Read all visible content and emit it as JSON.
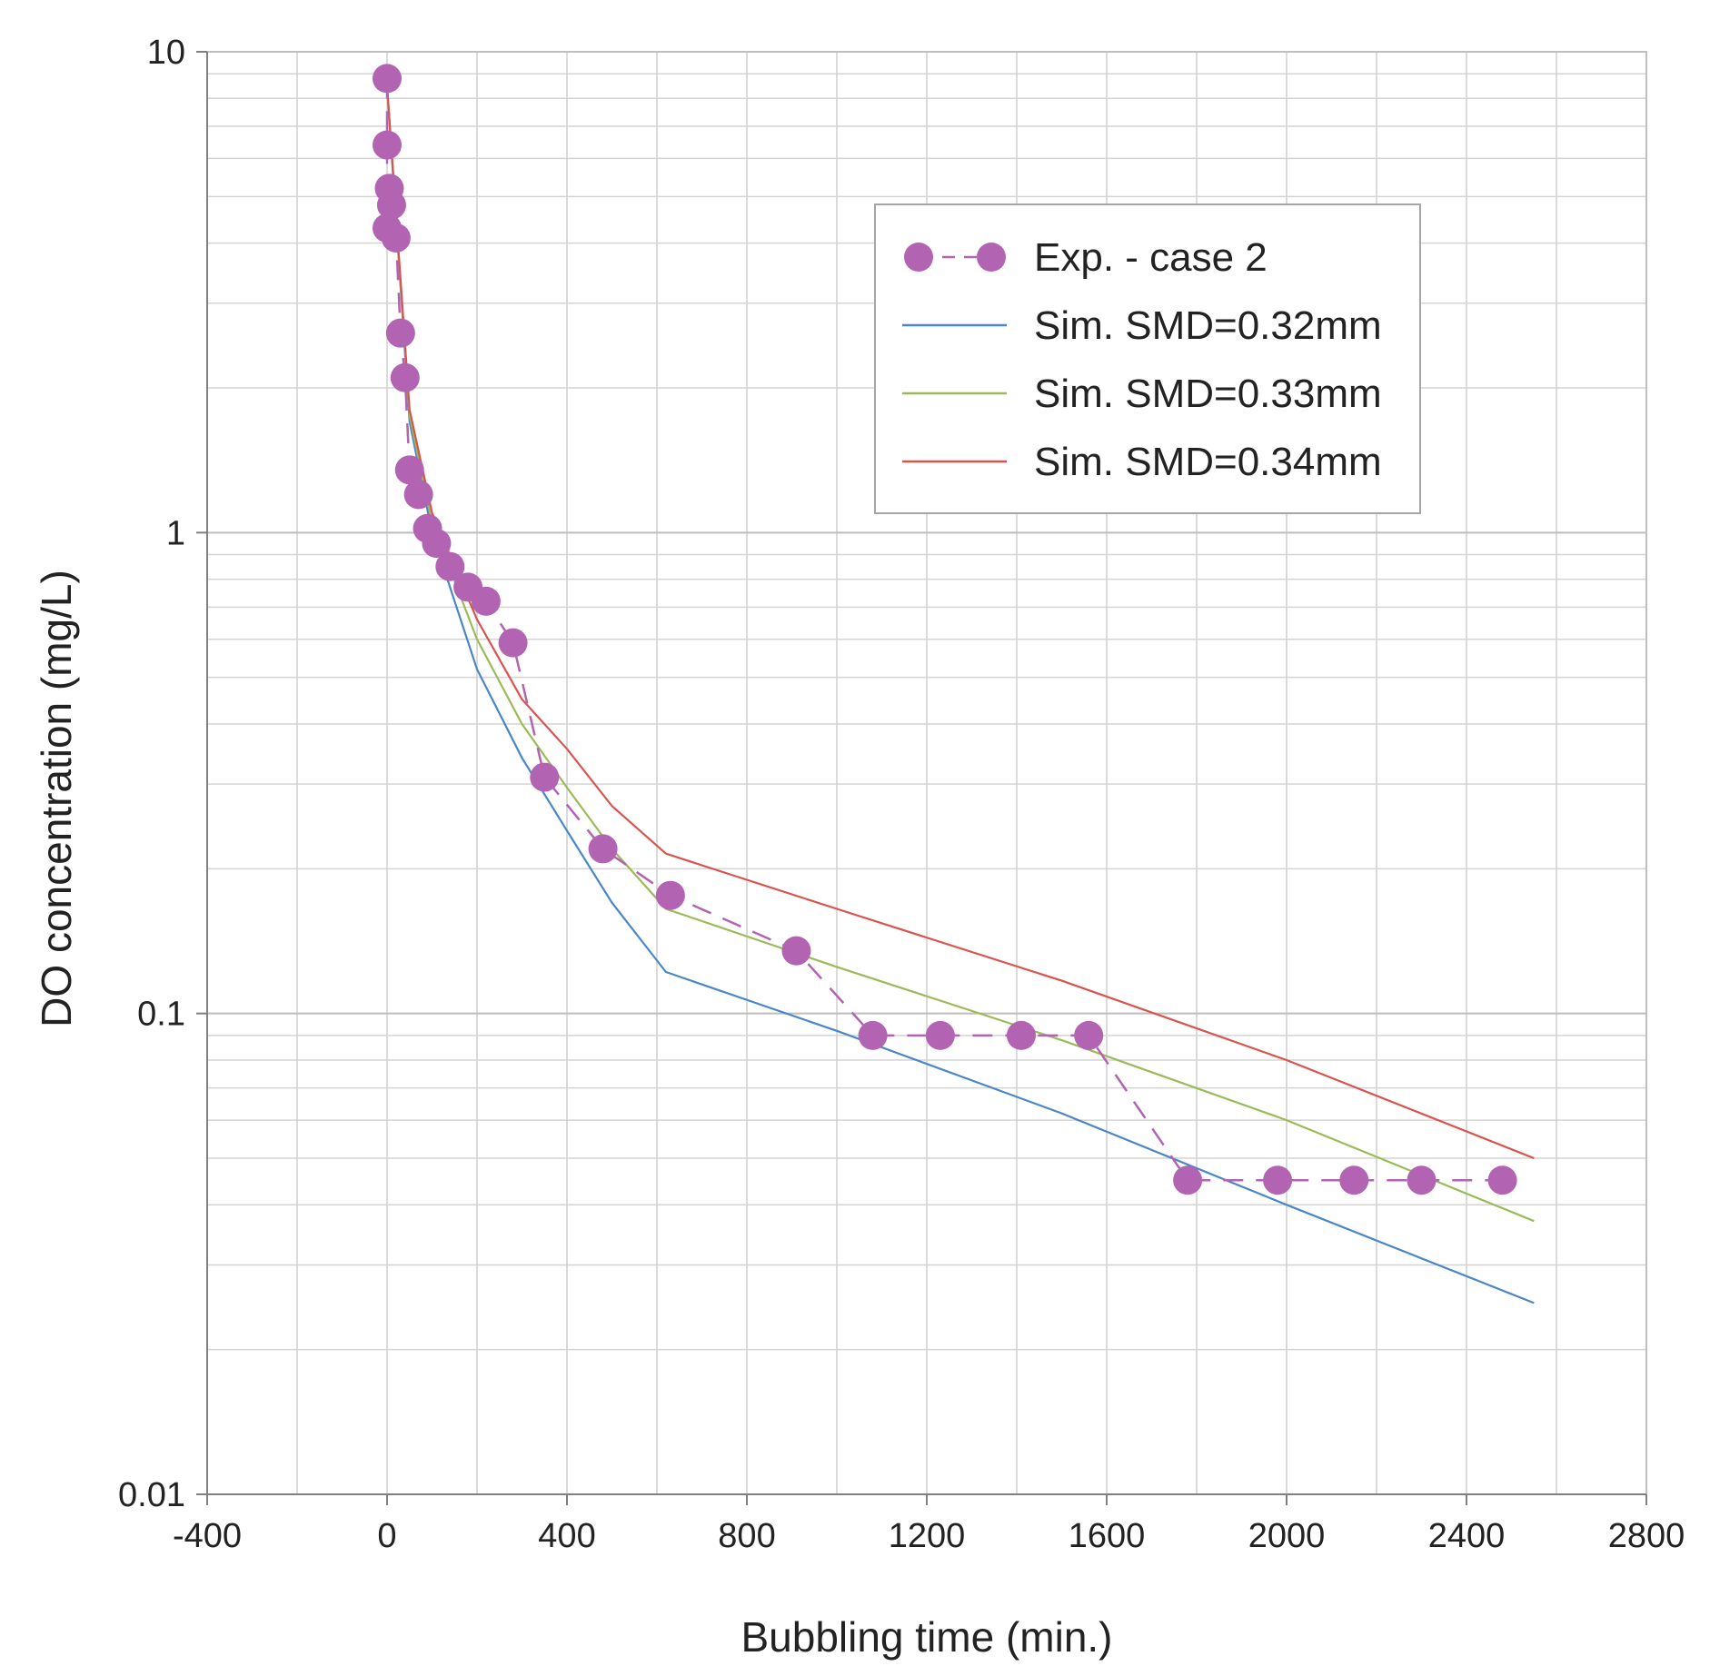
{
  "chart_data": {
    "type": "line",
    "title": "",
    "xlabel": "Bubbling time (min.)",
    "ylabel": "DO concentration (mg/L)",
    "xlim": [
      -400,
      2800
    ],
    "ylim": [
      0.01,
      10
    ],
    "yscale": "log",
    "grid": true,
    "legend_position": "top-right",
    "x_ticks": [
      -400,
      0,
      400,
      800,
      1200,
      1600,
      2000,
      2400,
      2800
    ],
    "x_tick_labels": [
      "-400",
      "0",
      "400",
      "800",
      "1200",
      "1600",
      "2000",
      "2400",
      "2800"
    ],
    "y_ticks": [
      0.01,
      0.1,
      1,
      10
    ],
    "y_tick_labels": [
      "0.01",
      "0.1",
      "1",
      "10"
    ],
    "series": [
      {
        "name": "Exp. - case 2",
        "style": "markers-dashed",
        "color": "#B264B2",
        "x": [
          0,
          0,
          0,
          5,
          10,
          20,
          30,
          40,
          50,
          70,
          90,
          110,
          140,
          180,
          220,
          280,
          350,
          480,
          630,
          910,
          1080,
          1230,
          1410,
          1560,
          1780,
          1980,
          2150,
          2300,
          2480
        ],
        "y": [
          8.8,
          6.4,
          4.3,
          5.2,
          4.8,
          4.1,
          2.6,
          2.1,
          1.35,
          1.2,
          1.02,
          0.95,
          0.85,
          0.77,
          0.72,
          0.59,
          0.31,
          0.22,
          0.176,
          0.135,
          0.09,
          0.09,
          0.09,
          0.09,
          0.045,
          0.045,
          0.045,
          0.045,
          0.045
        ]
      },
      {
        "name": "Sim. SMD=0.32mm",
        "style": "line",
        "color": "#4A86C8",
        "x": [
          0,
          50,
          100,
          200,
          300,
          400,
          500,
          620,
          1000,
          1500,
          2000,
          2550
        ],
        "y": [
          8.5,
          1.7,
          1.0,
          0.52,
          0.34,
          0.24,
          0.17,
          0.122,
          0.092,
          0.062,
          0.04,
          0.025
        ]
      },
      {
        "name": "Sim. SMD=0.33mm",
        "style": "line",
        "color": "#9BBB59",
        "x": [
          0,
          50,
          100,
          200,
          300,
          400,
          500,
          620,
          1000,
          1500,
          2000,
          2550
        ],
        "y": [
          8.5,
          1.75,
          1.05,
          0.6,
          0.4,
          0.295,
          0.22,
          0.165,
          0.125,
          0.088,
          0.06,
          0.037
        ]
      },
      {
        "name": "Sim. SMD=0.34mm",
        "style": "line",
        "color": "#D9534F",
        "x": [
          0,
          50,
          100,
          200,
          300,
          400,
          500,
          620,
          1000,
          1500,
          2000,
          2550
        ],
        "y": [
          8.5,
          1.8,
          1.1,
          0.66,
          0.45,
          0.355,
          0.27,
          0.215,
          0.165,
          0.117,
          0.08,
          0.05
        ]
      }
    ]
  }
}
